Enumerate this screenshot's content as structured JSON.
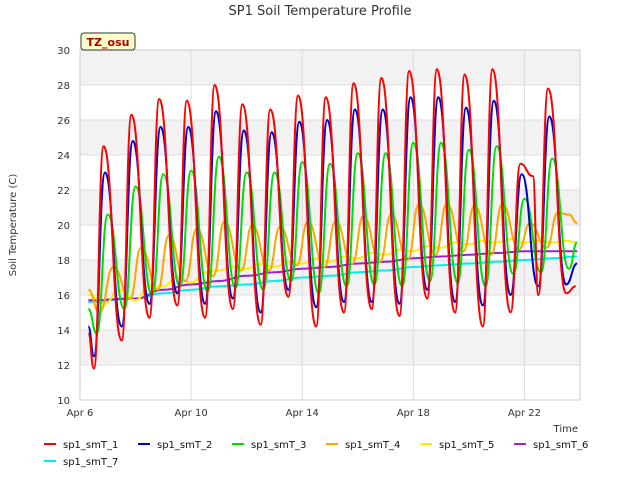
{
  "chart_data": {
    "type": "line",
    "title": "SP1 Soil Temperature Profile",
    "xlabel": "Time",
    "ylabel": "Soil Temperature (C)",
    "ylim": [
      10,
      30
    ],
    "yticks": [
      10,
      12,
      14,
      16,
      18,
      20,
      22,
      24,
      26,
      28,
      30
    ],
    "xlim": [
      0,
      18
    ],
    "xticks": [
      {
        "value": 0,
        "label": "Apr 6"
      },
      {
        "value": 4,
        "label": "Apr 10"
      },
      {
        "value": 8,
        "label": "Apr 14"
      },
      {
        "value": 12,
        "label": "Apr 18"
      },
      {
        "value": 16,
        "label": "Apr 22"
      }
    ],
    "x_units": "days since Apr 6",
    "grid": true,
    "legend_position": "bottom",
    "tag_label": "TZ_osu",
    "series": [
      {
        "name": "sp1_smT_1",
        "color": "#ff0000",
        "x": [
          0.3,
          0.5,
          0.85,
          1.5,
          1.85,
          2.5,
          2.85,
          3.5,
          3.85,
          4.5,
          4.85,
          5.5,
          5.85,
          6.5,
          6.85,
          7.5,
          7.85,
          8.5,
          8.85,
          9.5,
          9.85,
          10.5,
          10.85,
          11.5,
          11.85,
          12.5,
          12.85,
          13.5,
          13.85,
          14.5,
          14.85,
          15.5,
          15.85,
          16.3,
          16.5,
          16.85,
          17.5,
          17.85
        ],
        "min": [
          13.8,
          11.8,
          null,
          13.4,
          null,
          14.7,
          null,
          15.4,
          null,
          14.7,
          null,
          15.2,
          null,
          14.3,
          null,
          15.9,
          null,
          14.2,
          null,
          15.0,
          null,
          15.2,
          null,
          14.8,
          null,
          15.8,
          null,
          15.0,
          null,
          14.2,
          null,
          15.0,
          null,
          null,
          16.0,
          null,
          16.1,
          null
        ],
        "values": [
          13.8,
          11.8,
          24.5,
          13.4,
          26.3,
          14.7,
          27.2,
          15.4,
          27.1,
          14.7,
          28.0,
          15.2,
          26.9,
          14.3,
          26.6,
          15.9,
          27.4,
          14.2,
          27.3,
          15.0,
          28.1,
          15.2,
          28.4,
          14.8,
          28.8,
          15.8,
          28.9,
          15.0,
          28.6,
          14.2,
          28.9,
          15.0,
          23.5,
          22.8,
          16.0,
          27.8,
          16.1,
          16.5
        ]
      },
      {
        "name": "sp1_smT_2",
        "color": "#0000cc",
        "x": [
          0.3,
          0.5,
          0.9,
          1.5,
          1.9,
          2.5,
          2.9,
          3.5,
          3.9,
          4.5,
          4.9,
          5.5,
          5.9,
          6.5,
          6.9,
          7.5,
          7.9,
          8.5,
          8.9,
          9.5,
          9.9,
          10.5,
          10.9,
          11.5,
          11.9,
          12.5,
          12.9,
          13.5,
          13.9,
          14.5,
          14.9,
          15.5,
          15.9,
          16.5,
          16.9,
          17.5,
          17.9
        ],
        "values": [
          14.2,
          12.5,
          23.0,
          14.2,
          24.8,
          15.5,
          25.6,
          16.1,
          25.6,
          15.5,
          26.5,
          15.8,
          25.4,
          15.0,
          25.3,
          16.3,
          25.9,
          15.3,
          26.0,
          15.6,
          26.6,
          15.6,
          26.6,
          15.5,
          27.3,
          16.3,
          27.3,
          15.6,
          26.7,
          15.4,
          27.1,
          16.0,
          22.9,
          16.5,
          26.2,
          16.6,
          17.8
        ]
      },
      {
        "name": "sp1_smT_3",
        "color": "#00dd00",
        "x": [
          0.3,
          0.6,
          1.0,
          1.6,
          2.0,
          2.6,
          3.0,
          3.6,
          4.0,
          4.6,
          5.0,
          5.6,
          6.0,
          6.6,
          7.0,
          7.6,
          8.0,
          8.6,
          9.0,
          9.6,
          10.0,
          10.6,
          11.0,
          11.6,
          12.0,
          12.6,
          13.0,
          13.6,
          14.0,
          14.6,
          15.0,
          15.6,
          16.0,
          16.6,
          17.0,
          17.6,
          17.9
        ],
        "values": [
          15.2,
          13.8,
          20.6,
          15.2,
          22.2,
          16.0,
          22.9,
          16.5,
          23.1,
          16.2,
          23.9,
          16.4,
          23.0,
          16.3,
          23.0,
          16.8,
          23.6,
          16.1,
          23.5,
          16.5,
          24.1,
          16.6,
          24.1,
          16.5,
          24.7,
          16.8,
          24.7,
          16.7,
          24.3,
          16.5,
          24.5,
          17.2,
          21.5,
          17.3,
          23.8,
          17.5,
          19.0
        ]
      },
      {
        "name": "sp1_smT_4",
        "color": "#ffa500",
        "x": [
          0.3,
          0.7,
          1.2,
          1.8,
          2.2,
          2.8,
          3.2,
          3.8,
          4.2,
          4.8,
          5.2,
          5.8,
          6.2,
          6.8,
          7.2,
          7.8,
          8.2,
          8.8,
          9.2,
          9.8,
          10.2,
          10.8,
          11.2,
          11.8,
          12.2,
          12.8,
          13.2,
          13.8,
          14.2,
          14.8,
          15.2,
          15.8,
          16.2,
          16.8,
          17.2,
          17.6,
          17.9
        ],
        "values": [
          16.3,
          15.0,
          17.6,
          15.8,
          18.7,
          16.3,
          19.4,
          16.8,
          19.8,
          17.1,
          20.2,
          17.4,
          20.0,
          17.4,
          19.9,
          17.7,
          20.2,
          17.6,
          20.2,
          17.8,
          20.5,
          17.9,
          20.6,
          18.0,
          21.2,
          18.3,
          21.2,
          18.5,
          21.1,
          18.3,
          21.2,
          18.6,
          20.1,
          18.7,
          20.7,
          20.6,
          20.1
        ]
      },
      {
        "name": "sp1_smT_5",
        "color": "#ffee00",
        "x": [
          0.3,
          0.9,
          1.4,
          2.0,
          2.5,
          3.0,
          3.5,
          4.0,
          4.5,
          5.0,
          5.5,
          6.0,
          6.5,
          7.0,
          7.5,
          8.0,
          8.5,
          9.0,
          9.5,
          10.0,
          10.5,
          11.0,
          11.5,
          12.0,
          12.5,
          13.0,
          13.5,
          14.0,
          14.5,
          15.0,
          15.5,
          16.0,
          16.5,
          17.0,
          17.5,
          17.9
        ],
        "values": [
          16.0,
          15.5,
          16.3,
          15.7,
          16.5,
          16.5,
          17.0,
          16.7,
          17.3,
          17.4,
          17.6,
          17.5,
          17.8,
          17.6,
          17.9,
          17.8,
          18.1,
          17.9,
          18.2,
          18.1,
          18.4,
          18.3,
          18.6,
          18.5,
          18.8,
          18.7,
          19.0,
          18.9,
          19.1,
          19.0,
          19.2,
          19.0,
          19.1,
          19.0,
          19.1,
          19.0
        ]
      },
      {
        "name": "sp1_smT_6",
        "color": "#9922cc",
        "x": [
          0.3,
          2.0,
          3.0,
          4.0,
          5.0,
          6.0,
          7.0,
          8.0,
          9.0,
          10.0,
          11.0,
          12.0,
          13.0,
          14.0,
          15.0,
          16.0,
          17.0,
          17.9
        ],
        "values": [
          15.7,
          15.8,
          16.3,
          16.6,
          16.8,
          17.1,
          17.3,
          17.5,
          17.6,
          17.8,
          17.9,
          18.1,
          18.2,
          18.3,
          18.4,
          18.5,
          18.5,
          18.5
        ]
      },
      {
        "name": "sp1_smT_7",
        "color": "#00eeee",
        "x": [
          0.3,
          2.0,
          3.0,
          4.0,
          5.0,
          6.0,
          7.0,
          8.0,
          9.0,
          10.0,
          11.0,
          12.0,
          13.0,
          14.0,
          15.0,
          16.0,
          17.0,
          17.9
        ],
        "values": [
          15.6,
          15.8,
          16.1,
          16.3,
          16.5,
          16.6,
          16.8,
          17.0,
          17.1,
          17.3,
          17.4,
          17.6,
          17.7,
          17.8,
          17.9,
          18.0,
          18.1,
          18.2
        ]
      }
    ]
  }
}
